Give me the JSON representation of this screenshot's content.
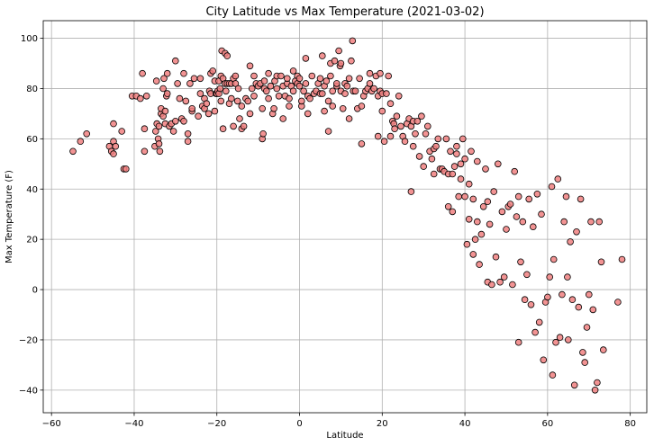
{
  "chart_data": {
    "type": "scatter",
    "title": "City Latitude vs Max Temperature (2021-03-02)",
    "xlabel": "Latitude",
    "ylabel": "Max Temperature (F)",
    "xlim": [
      -62,
      84
    ],
    "ylim": [
      -49,
      107
    ],
    "xticks": [
      -60,
      -40,
      -20,
      0,
      20,
      40,
      60,
      80
    ],
    "yticks": [
      -40,
      -20,
      0,
      20,
      40,
      60,
      80,
      100
    ],
    "grid": true,
    "marker_color": "#f08080",
    "marker_edge": "#000000",
    "points": [
      [
        -54.8,
        55
      ],
      [
        -53,
        59
      ],
      [
        -51.5,
        62
      ],
      [
        -46,
        57
      ],
      [
        -45.5,
        55
      ],
      [
        -45,
        66
      ],
      [
        -45,
        54
      ],
      [
        -45,
        59
      ],
      [
        -44.5,
        57
      ],
      [
        -43,
        63
      ],
      [
        -42.5,
        48
      ],
      [
        -42,
        48
      ],
      [
        -40.5,
        77
      ],
      [
        -39.5,
        77
      ],
      [
        -38.5,
        76
      ],
      [
        -38,
        86
      ],
      [
        -37.5,
        55
      ],
      [
        -37.5,
        64
      ],
      [
        -37,
        77
      ],
      [
        -35,
        57
      ],
      [
        -34.8,
        63
      ],
      [
        -34.6,
        83
      ],
      [
        -34.5,
        66
      ],
      [
        -34.2,
        60
      ],
      [
        -34,
        58
      ],
      [
        -34,
        65
      ],
      [
        -33.8,
        55
      ],
      [
        -33.5,
        70
      ],
      [
        -33.5,
        72
      ],
      [
        -33,
        69
      ],
      [
        -33,
        80
      ],
      [
        -32.8,
        84
      ],
      [
        -32.5,
        66
      ],
      [
        -32.5,
        71
      ],
      [
        -32.2,
        77
      ],
      [
        -32,
        78
      ],
      [
        -32,
        86
      ],
      [
        -31.5,
        65
      ],
      [
        -31,
        66
      ],
      [
        -30.5,
        63
      ],
      [
        -30,
        67
      ],
      [
        -30,
        91
      ],
      [
        -29.5,
        82
      ],
      [
        -29,
        76
      ],
      [
        -28.5,
        68
      ],
      [
        -28,
        67
      ],
      [
        -28,
        86
      ],
      [
        -27.5,
        75
      ],
      [
        -27,
        59
      ],
      [
        -27,
        62
      ],
      [
        -26.5,
        82
      ],
      [
        -26,
        71
      ],
      [
        -26,
        72
      ],
      [
        -25.5,
        84
      ],
      [
        -24.5,
        69
      ],
      [
        -24,
        78
      ],
      [
        -24,
        84
      ],
      [
        -23.5,
        73
      ],
      [
        -23,
        72
      ],
      [
        -23,
        76
      ],
      [
        -22.5,
        74
      ],
      [
        -22,
        70
      ],
      [
        -21.8,
        79
      ],
      [
        -21.5,
        78
      ],
      [
        -21.5,
        86
      ],
      [
        -21,
        87
      ],
      [
        -20.5,
        71
      ],
      [
        -20.5,
        83
      ],
      [
        -20.2,
        78
      ],
      [
        -20,
        78
      ],
      [
        -19.8,
        79
      ],
      [
        -19.5,
        78
      ],
      [
        -19.5,
        83
      ],
      [
        -19.2,
        80
      ],
      [
        -19,
        75
      ],
      [
        -19,
        85
      ],
      [
        -18.8,
        95
      ],
      [
        -18.5,
        64
      ],
      [
        -18.5,
        84
      ],
      [
        -18,
        82
      ],
      [
        -18,
        94
      ],
      [
        -17.8,
        79
      ],
      [
        -17.5,
        82
      ],
      [
        -17.5,
        93
      ],
      [
        -17,
        74
      ],
      [
        -17,
        82
      ],
      [
        -16.5,
        76
      ],
      [
        -16.5,
        82
      ],
      [
        -16,
        65
      ],
      [
        -16,
        84
      ],
      [
        -15.5,
        82
      ],
      [
        -15.5,
        85
      ],
      [
        -15,
        75
      ],
      [
        -14.8,
        80
      ],
      [
        -14.5,
        68
      ],
      [
        -14,
        64
      ],
      [
        -14,
        73
      ],
      [
        -13.5,
        65
      ],
      [
        -13,
        76
      ],
      [
        -12.5,
        75
      ],
      [
        -12,
        70
      ],
      [
        -12,
        89
      ],
      [
        -11.5,
        80
      ],
      [
        -11,
        77
      ],
      [
        -11,
        85
      ],
      [
        -10.5,
        82
      ],
      [
        -10,
        81
      ],
      [
        -9.5,
        82
      ],
      [
        -9,
        60
      ],
      [
        -9,
        72
      ],
      [
        -8.8,
        62
      ],
      [
        -8.5,
        80
      ],
      [
        -8.5,
        83
      ],
      [
        -8,
        79
      ],
      [
        -7.5,
        76
      ],
      [
        -7.5,
        86
      ],
      [
        -7,
        81
      ],
      [
        -6.5,
        70
      ],
      [
        -6.2,
        72
      ],
      [
        -6,
        83
      ],
      [
        -5.5,
        80
      ],
      [
        -5.5,
        85
      ],
      [
        -5,
        77
      ],
      [
        -4.5,
        85
      ],
      [
        -4,
        68
      ],
      [
        -4,
        81
      ],
      [
        -3.5,
        77
      ],
      [
        -3,
        82
      ],
      [
        -3,
        84
      ],
      [
        -2.5,
        73
      ],
      [
        -2.5,
        76
      ],
      [
        -2,
        81
      ],
      [
        -1.5,
        79
      ],
      [
        -1.5,
        87
      ],
      [
        -1,
        83
      ],
      [
        -0.5,
        82
      ],
      [
        -0.5,
        85
      ],
      [
        0,
        81
      ],
      [
        0,
        84
      ],
      [
        0.5,
        73
      ],
      [
        0.5,
        75
      ],
      [
        1,
        79
      ],
      [
        1.5,
        82
      ],
      [
        1.5,
        92
      ],
      [
        2,
        70
      ],
      [
        2,
        77
      ],
      [
        2.5,
        76
      ],
      [
        3,
        85
      ],
      [
        3.5,
        78
      ],
      [
        4,
        79
      ],
      [
        4.5,
        82
      ],
      [
        5,
        78
      ],
      [
        5,
        84
      ],
      [
        5.5,
        78
      ],
      [
        5.5,
        93
      ],
      [
        6,
        71
      ],
      [
        6,
        81
      ],
      [
        6.5,
        83
      ],
      [
        7,
        63
      ],
      [
        7,
        75
      ],
      [
        7.5,
        85
      ],
      [
        7.5,
        90
      ],
      [
        8,
        79
      ],
      [
        8,
        73
      ],
      [
        8.5,
        91
      ],
      [
        9,
        81
      ],
      [
        9,
        82
      ],
      [
        9.5,
        95
      ],
      [
        9.8,
        89
      ],
      [
        10,
        79
      ],
      [
        10,
        90
      ],
      [
        10.5,
        72
      ],
      [
        11,
        78
      ],
      [
        11,
        82
      ],
      [
        11.5,
        81
      ],
      [
        12,
        68
      ],
      [
        12,
        84
      ],
      [
        12.5,
        91
      ],
      [
        12.8,
        99
      ],
      [
        13,
        79
      ],
      [
        13.5,
        79
      ],
      [
        14,
        72
      ],
      [
        14.5,
        84
      ],
      [
        15,
        58
      ],
      [
        15,
        73
      ],
      [
        15.5,
        77
      ],
      [
        16,
        79
      ],
      [
        16.5,
        80
      ],
      [
        17,
        82
      ],
      [
        17,
        86
      ],
      [
        17.5,
        79
      ],
      [
        18,
        80
      ],
      [
        18.5,
        85
      ],
      [
        19,
        61
      ],
      [
        19,
        77
      ],
      [
        19.5,
        79
      ],
      [
        19.5,
        86
      ],
      [
        20,
        71
      ],
      [
        20,
        78
      ],
      [
        20.5,
        59
      ],
      [
        21,
        78
      ],
      [
        21.5,
        85
      ],
      [
        22,
        61
      ],
      [
        22,
        74
      ],
      [
        22.5,
        67
      ],
      [
        22.8,
        66
      ],
      [
        23,
        64
      ],
      [
        23.5,
        69
      ],
      [
        24,
        77
      ],
      [
        24.5,
        65
      ],
      [
        25,
        61
      ],
      [
        25.5,
        59
      ],
      [
        26,
        66
      ],
      [
        26.5,
        68
      ],
      [
        27,
        39
      ],
      [
        27,
        65
      ],
      [
        27.5,
        67
      ],
      [
        27.5,
        57
      ],
      [
        28,
        62
      ],
      [
        28.5,
        67
      ],
      [
        29,
        53
      ],
      [
        29.5,
        69
      ],
      [
        30,
        49
      ],
      [
        30.5,
        62
      ],
      [
        31,
        65
      ],
      [
        31.5,
        55
      ],
      [
        32,
        52
      ],
      [
        32.5,
        46
      ],
      [
        32.5,
        56
      ],
      [
        33,
        57
      ],
      [
        33.5,
        60
      ],
      [
        34,
        48
      ],
      [
        34.5,
        48
      ],
      [
        35,
        47
      ],
      [
        35.5,
        60
      ],
      [
        36,
        33
      ],
      [
        36,
        46
      ],
      [
        36.5,
        55
      ],
      [
        37,
        31
      ],
      [
        37,
        46
      ],
      [
        37.5,
        49
      ],
      [
        38,
        54
      ],
      [
        38,
        57
      ],
      [
        38.5,
        37
      ],
      [
        39,
        44
      ],
      [
        39,
        50
      ],
      [
        39.5,
        60
      ],
      [
        40,
        37
      ],
      [
        40,
        52
      ],
      [
        40.5,
        18
      ],
      [
        41,
        28
      ],
      [
        41,
        42
      ],
      [
        41.5,
        55
      ],
      [
        42,
        14
      ],
      [
        42,
        36
      ],
      [
        42.5,
        20
      ],
      [
        43,
        27
      ],
      [
        43,
        51
      ],
      [
        43.5,
        10
      ],
      [
        44,
        22
      ],
      [
        44.5,
        33
      ],
      [
        45,
        48
      ],
      [
        45.5,
        3
      ],
      [
        45.5,
        35
      ],
      [
        46,
        26
      ],
      [
        46.5,
        2
      ],
      [
        47,
        39
      ],
      [
        47.5,
        13
      ],
      [
        48,
        50
      ],
      [
        48.5,
        3
      ],
      [
        49,
        31
      ],
      [
        49.5,
        5
      ],
      [
        50,
        24
      ],
      [
        50.5,
        33
      ],
      [
        51,
        34
      ],
      [
        51.5,
        2
      ],
      [
        52,
        47
      ],
      [
        52.5,
        29
      ],
      [
        53,
        -21
      ],
      [
        53,
        37
      ],
      [
        53.5,
        11
      ],
      [
        54,
        27
      ],
      [
        54.5,
        -4
      ],
      [
        55,
        6
      ],
      [
        55.5,
        36
      ],
      [
        56,
        -6
      ],
      [
        56.5,
        25
      ],
      [
        57,
        -17
      ],
      [
        57.5,
        38
      ],
      [
        58,
        -13
      ],
      [
        58.5,
        30
      ],
      [
        59,
        -28
      ],
      [
        59.5,
        -5
      ],
      [
        60,
        -3
      ],
      [
        60.5,
        5
      ],
      [
        61,
        41
      ],
      [
        61.2,
        -34
      ],
      [
        61.5,
        12
      ],
      [
        62,
        -21
      ],
      [
        62.5,
        44
      ],
      [
        63,
        -19
      ],
      [
        63.5,
        -2
      ],
      [
        64,
        27
      ],
      [
        64.5,
        37
      ],
      [
        64.8,
        5
      ],
      [
        65,
        -20
      ],
      [
        65.5,
        19
      ],
      [
        66,
        -4
      ],
      [
        66.5,
        -38
      ],
      [
        67,
        23
      ],
      [
        67.5,
        -7
      ],
      [
        68,
        36
      ],
      [
        68.5,
        -25
      ],
      [
        69,
        -29
      ],
      [
        69.5,
        -15
      ],
      [
        70,
        -2
      ],
      [
        70.5,
        27
      ],
      [
        71,
        -8
      ],
      [
        71.5,
        -40
      ],
      [
        72,
        -37
      ],
      [
        72.5,
        27
      ],
      [
        73,
        11
      ],
      [
        73.5,
        -24
      ],
      [
        77,
        -5
      ],
      [
        78,
        12
      ]
    ]
  }
}
